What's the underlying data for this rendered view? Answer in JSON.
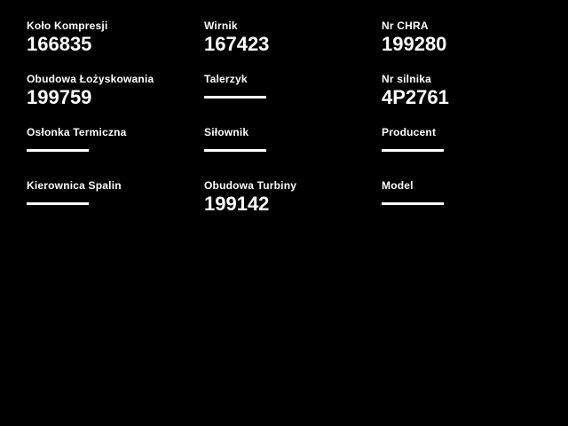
{
  "page": {
    "background_color": "#000000",
    "text_color": "#ffffff"
  },
  "fields": [
    {
      "label": "Koło Kompresji",
      "value": "166835"
    },
    {
      "label": "Wirnik",
      "value": "167423"
    },
    {
      "label": "Nr CHRA",
      "value": "199280"
    },
    {
      "label": "Obudowa Łożyskowania",
      "value": "199759"
    },
    {
      "label": "Talerzyk",
      "value": ""
    },
    {
      "label": "Nr silnika",
      "value": "4P2761"
    },
    {
      "label": "Osłonka Termiczna",
      "value": ""
    },
    {
      "label": "Siłownik",
      "value": ""
    },
    {
      "label": "Producent",
      "value": ""
    },
    {
      "label": "Kierownica Spalin",
      "value": ""
    },
    {
      "label": "Obudowa Turbiny",
      "value": "199142"
    },
    {
      "label": "Model",
      "value": ""
    }
  ]
}
